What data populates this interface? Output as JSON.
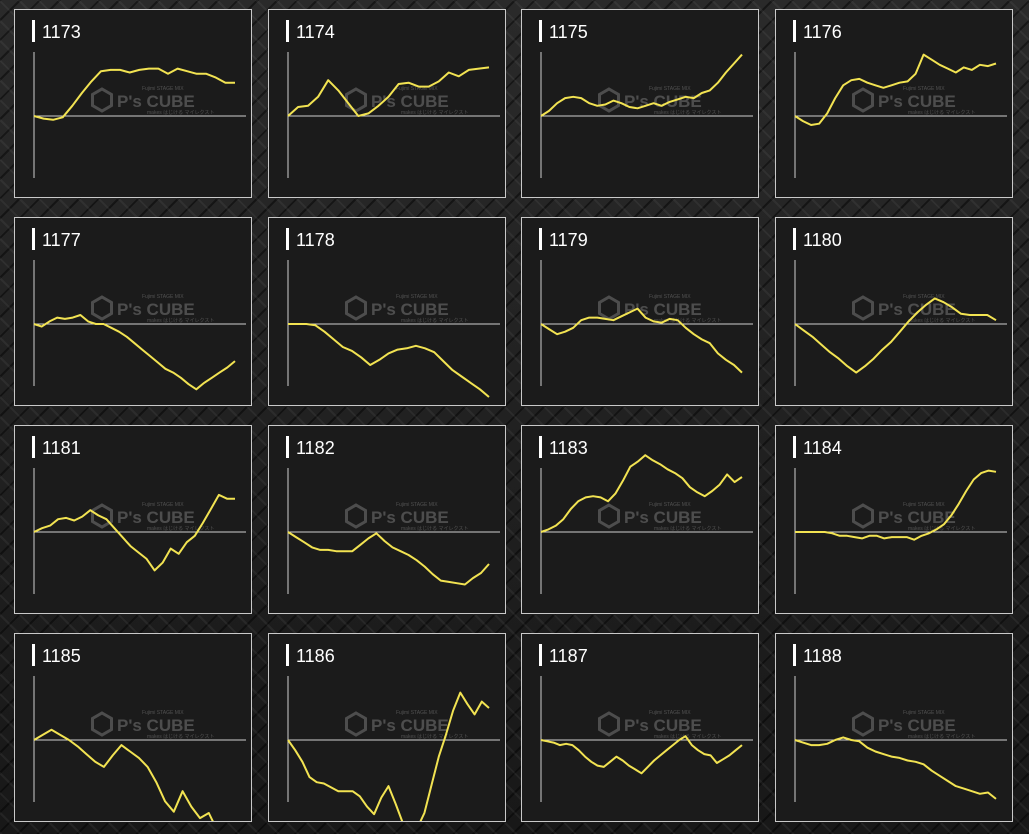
{
  "watermark": {
    "brand": "P's CUBE",
    "top_line": "Fujimi STAGE MIX",
    "bottom_line": "makes はじける マイレクスト"
  },
  "colors": {
    "line": "#f2e352",
    "baseline": "#cfcfcf",
    "axis": "#cfcfcf",
    "panel_bg": "#1b1b1b",
    "border": "#c9c9c9"
  },
  "chart_data": [
    {
      "type": "line",
      "title": "1173",
      "y": [
        0,
        -2,
        -3,
        -1,
        8,
        18,
        27,
        35,
        36,
        36,
        34,
        36,
        37,
        37,
        33,
        37,
        35,
        33,
        33,
        30,
        26,
        26
      ]
    },
    {
      "type": "line",
      "title": "1174",
      "y": [
        0,
        7,
        8,
        15,
        28,
        20,
        10,
        0,
        2,
        8,
        15,
        25,
        26,
        23,
        23,
        27,
        34,
        31,
        36,
        37,
        38
      ]
    },
    {
      "type": "line",
      "title": "1175",
      "y": [
        0,
        4,
        10,
        14,
        15,
        14,
        10,
        8,
        9,
        12,
        10,
        7,
        6,
        8,
        10,
        8,
        11,
        13,
        15,
        14,
        18,
        20,
        26,
        34,
        41,
        48
      ]
    },
    {
      "type": "line",
      "title": "1176",
      "y": [
        0,
        -4,
        -7,
        -6,
        2,
        14,
        24,
        28,
        29,
        26,
        24,
        22,
        24,
        26,
        27,
        33,
        48,
        44,
        40,
        37,
        34,
        38,
        36,
        40,
        39,
        41
      ]
    },
    {
      "type": "line",
      "title": "1177",
      "y": [
        0,
        -2,
        2,
        5,
        4,
        5,
        7,
        2,
        0,
        0,
        -3,
        -6,
        -10,
        -15,
        -20,
        -25,
        -30,
        -35,
        -38,
        -42,
        -47,
        -51,
        -46,
        -42,
        -38,
        -34,
        -29
      ]
    },
    {
      "type": "line",
      "title": "1178",
      "y": [
        0,
        0,
        0,
        -1,
        -6,
        -12,
        -18,
        -21,
        -26,
        -32,
        -28,
        -23,
        -20,
        -19,
        -17,
        -19,
        -22,
        -29,
        -36,
        -41,
        -46,
        -51,
        -57
      ]
    },
    {
      "type": "line",
      "title": "1179",
      "y": [
        0,
        -4,
        -8,
        -6,
        -3,
        3,
        5,
        5,
        4,
        3,
        6,
        9,
        12,
        5,
        2,
        1,
        4,
        3,
        -3,
        -8,
        -12,
        -15,
        -23,
        -28,
        -32,
        -38
      ]
    },
    {
      "type": "line",
      "title": "1180",
      "y": [
        0,
        -5,
        -10,
        -16,
        -22,
        -27,
        -33,
        -38,
        -33,
        -27,
        -20,
        -14,
        -6,
        2,
        9,
        15,
        20,
        17,
        13,
        8,
        7,
        7,
        7,
        3
      ]
    },
    {
      "type": "line",
      "title": "1181",
      "y": [
        0,
        3,
        5,
        10,
        11,
        9,
        12,
        17,
        13,
        10,
        3,
        -4,
        -11,
        -16,
        -21,
        -30,
        -24,
        -13,
        -17,
        -8,
        -3,
        7,
        18,
        29,
        26,
        26
      ]
    },
    {
      "type": "line",
      "title": "1182",
      "y": [
        0,
        -4,
        -8,
        -12,
        -14,
        -14,
        -15,
        -15,
        -15,
        -10,
        -5,
        -1,
        -7,
        -12,
        -15,
        -18,
        -22,
        -27,
        -33,
        -38,
        -39,
        -40,
        -41,
        -36,
        -32,
        -25
      ]
    },
    {
      "type": "line",
      "title": "1183",
      "y": [
        0,
        2,
        5,
        10,
        18,
        24,
        27,
        28,
        27,
        24,
        30,
        40,
        51,
        55,
        60,
        56,
        53,
        49,
        46,
        42,
        35,
        31,
        28,
        32,
        37,
        45,
        39,
        43
      ]
    },
    {
      "type": "line",
      "title": "1184",
      "y": [
        0,
        0,
        0,
        0,
        0,
        -1,
        -3,
        -3,
        -4,
        -5,
        -3,
        -3,
        -5,
        -4,
        -4,
        -4,
        -6,
        -3,
        -1,
        2,
        6,
        13,
        22,
        32,
        41,
        46,
        48,
        47
      ]
    },
    {
      "type": "line",
      "title": "1185",
      "y": [
        0,
        4,
        8,
        4,
        0,
        -5,
        -11,
        -17,
        -21,
        -12,
        -4,
        -9,
        -14,
        -21,
        -33,
        -48,
        -56,
        -40,
        -52,
        -61,
        -57,
        -71,
        -76,
        -68
      ]
    },
    {
      "type": "line",
      "title": "1186",
      "y": [
        0,
        -8,
        -17,
        -29,
        -33,
        -34,
        -37,
        -40,
        -40,
        -40,
        -44,
        -52,
        -58,
        -45,
        -36,
        -50,
        -65,
        -68,
        -69,
        -57,
        -35,
        -13,
        4,
        23,
        37,
        28,
        20,
        30,
        25
      ]
    },
    {
      "type": "line",
      "title": "1187",
      "y": [
        0,
        -1,
        -2,
        -4,
        -3,
        -4,
        -8,
        -13,
        -17,
        -20,
        -21,
        -17,
        -13,
        -16,
        -20,
        -23,
        -26,
        -21,
        -16,
        -12,
        -8,
        -4,
        0,
        3,
        -4,
        -8,
        -11,
        -12,
        -18,
        -15,
        -12,
        -8,
        -4
      ]
    },
    {
      "type": "line",
      "title": "1188",
      "y": [
        0,
        -2,
        -4,
        -4,
        -3,
        0,
        2,
        0,
        -1,
        -6,
        -9,
        -11,
        -13,
        -14,
        -16,
        -17,
        -19,
        -24,
        -28,
        -32,
        -36,
        -38,
        -40,
        -42,
        -41,
        -46
      ]
    }
  ]
}
